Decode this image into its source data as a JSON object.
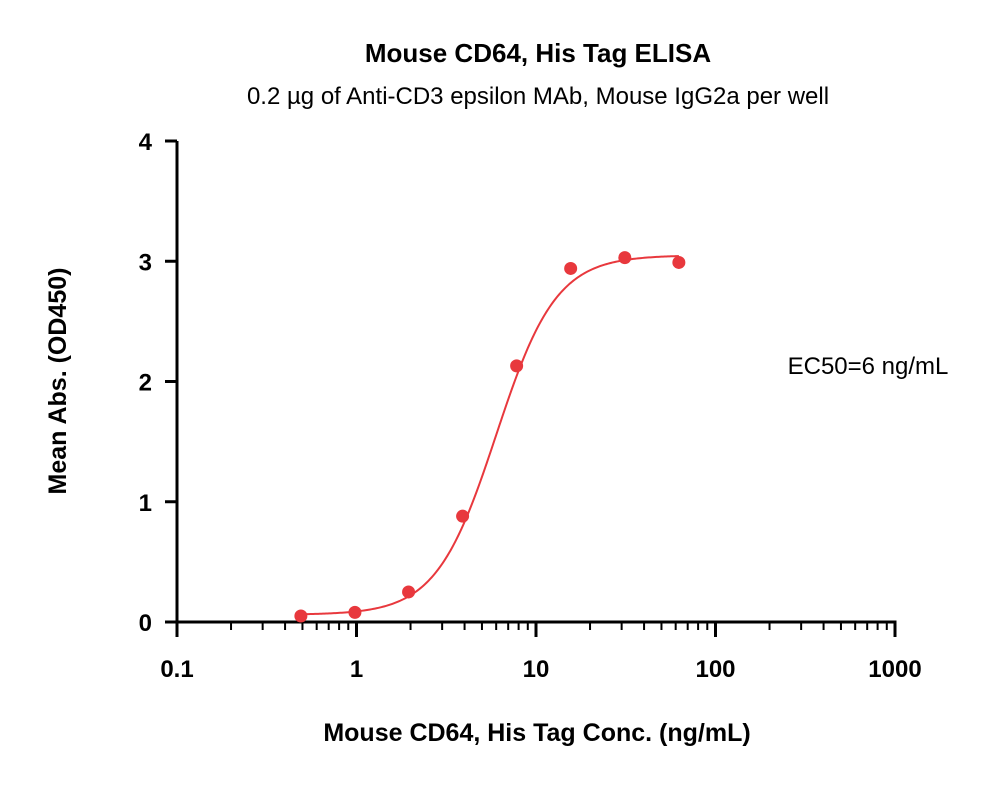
{
  "chart_data": {
    "type": "scatter",
    "title": "Mouse CD64, His Tag ELISA",
    "subtitle": "0.2 µg of Anti-CD3 epsilon MAb, Mouse IgG2a per well",
    "xlabel": "Mouse CD64, His Tag Conc. (ng/mL)",
    "ylabel": "Mean Abs. (OD450)",
    "xscale": "log",
    "xlim": [
      0.1,
      1000
    ],
    "ylim": [
      0,
      4
    ],
    "xticks": [
      {
        "value": 0.1,
        "label": "0.1"
      },
      {
        "value": 1,
        "label": "1"
      },
      {
        "value": 10,
        "label": "10"
      },
      {
        "value": 100,
        "label": "100"
      },
      {
        "value": 1000,
        "label": "1000"
      }
    ],
    "yticks": [
      {
        "value": 0,
        "label": "0"
      },
      {
        "value": 1,
        "label": "1"
      },
      {
        "value": 2,
        "label": "2"
      },
      {
        "value": 3,
        "label": "3"
      },
      {
        "value": 4,
        "label": "4"
      }
    ],
    "grid": false,
    "legend": "none",
    "color": "#e8383d",
    "series": [
      {
        "points": [
          {
            "x": 0.49,
            "y": 0.05
          },
          {
            "x": 0.98,
            "y": 0.08
          },
          {
            "x": 1.95,
            "y": 0.25
          },
          {
            "x": 3.9,
            "y": 0.88
          },
          {
            "x": 7.8,
            "y": 2.13
          },
          {
            "x": 15.6,
            "y": 2.94
          },
          {
            "x": 31.25,
            "y": 3.03
          },
          {
            "x": 62.5,
            "y": 2.99
          }
        ],
        "fit": {
          "model": "4PL",
          "bottom": 0.06,
          "top": 3.05,
          "ec50": 6,
          "hill": 2.6,
          "x_range": [
            0.49,
            62.5
          ]
        }
      }
    ],
    "annotations": [
      {
        "text": "EC50=6 ng/mL"
      }
    ]
  }
}
